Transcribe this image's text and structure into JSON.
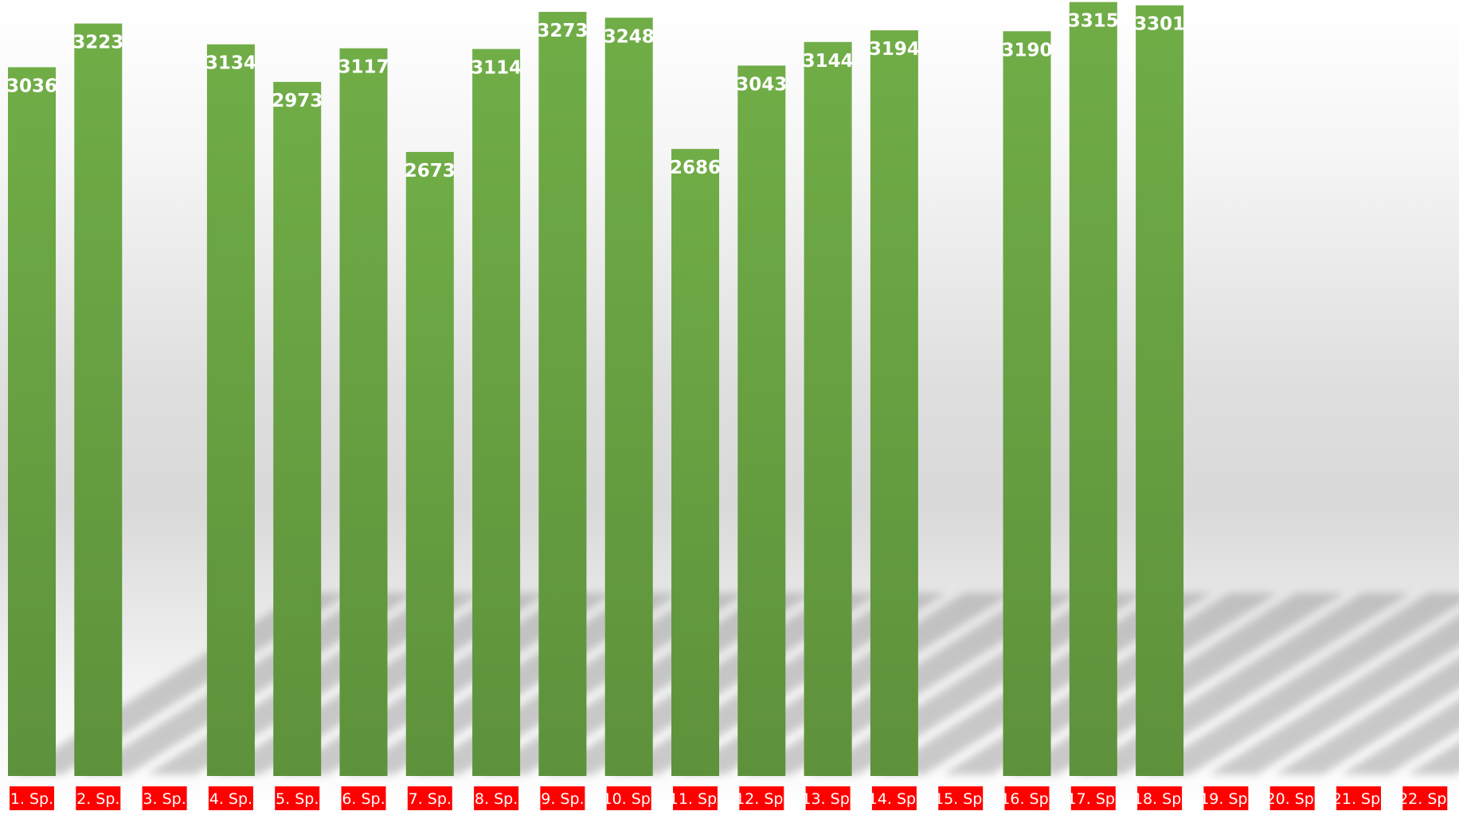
{
  "chart_data": {
    "type": "bar",
    "categories": [
      "1. Sp.",
      "2. Sp.",
      "3. Sp.",
      "4. Sp.",
      "5. Sp.",
      "6. Sp.",
      "7. Sp.",
      "8. Sp.",
      "9. Sp.",
      "10. Sp.",
      "11. Sp.",
      "12. Sp.",
      "13. Sp.",
      "14. Sp.",
      "15. Sp.",
      "16. Sp.",
      "17. Sp.",
      "18. Sp.",
      "19. Sp.",
      "20. Sp.",
      "21. Sp.",
      "22. Sp."
    ],
    "values": [
      3036,
      3223,
      null,
      3134,
      2973,
      3117,
      2673,
      3114,
      3273,
      3248,
      2686,
      3043,
      3144,
      3194,
      null,
      3190,
      3315,
      3301,
      null,
      null,
      null,
      null
    ],
    "title": "",
    "xlabel": "",
    "ylabel": "",
    "ylim": [
      0,
      3300
    ],
    "grid": false,
    "legend": "none",
    "data_labels": true,
    "colors": {
      "bar_top": "#70ad47",
      "bar_bottom": "#5e913b",
      "label_background": "#ff0000",
      "label_text": "#ffffff",
      "value_text": "#ffffff"
    }
  }
}
